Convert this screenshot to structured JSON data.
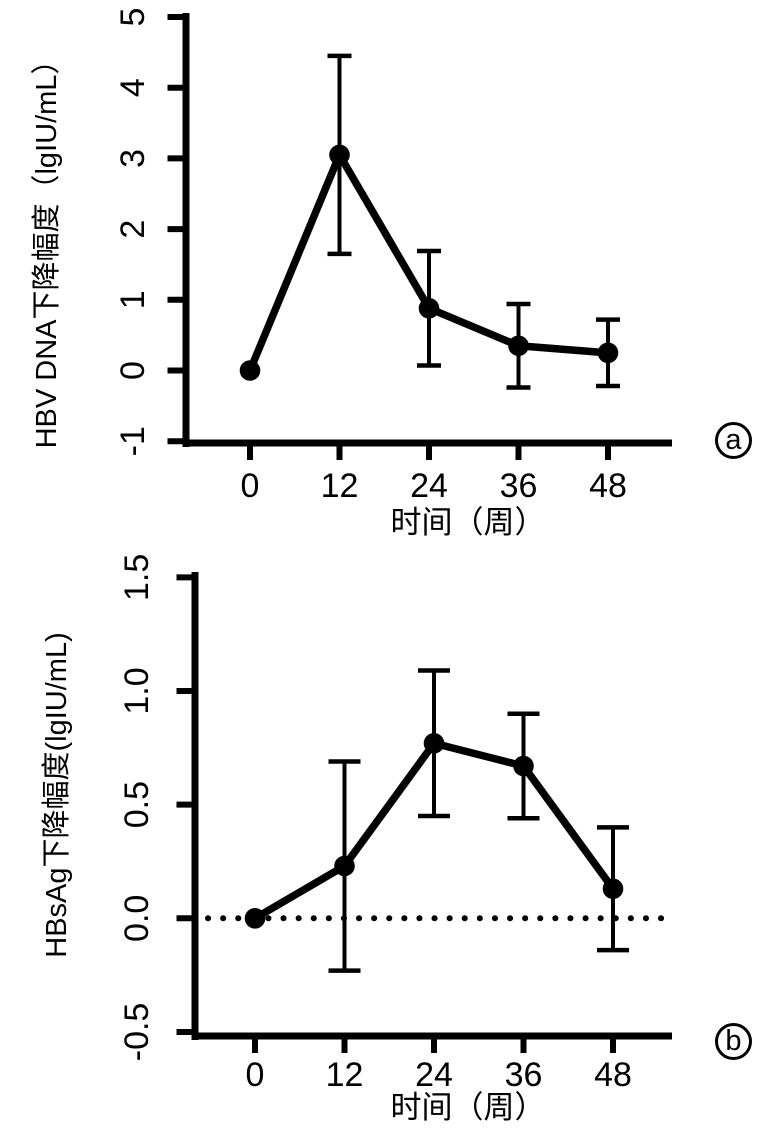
{
  "figure": {
    "background": "#ffffff",
    "ink_color": "#000000",
    "marker": "filled-circle",
    "error_bars": true
  },
  "chart_data": [
    {
      "panel_label": "a",
      "type": "line",
      "title": "",
      "xlabel": "时间（周）",
      "ylabel": "HBV DNA下降幅度（lgIU/mL）",
      "x": [
        0,
        12,
        24,
        36,
        48
      ],
      "xtick_labels": [
        "0",
        "12",
        "24",
        "36",
        "48"
      ],
      "ytick_values": [
        5,
        4,
        3,
        2,
        1,
        0,
        -1
      ],
      "ytick_labels": [
        "5",
        "4",
        "3",
        "2",
        "1",
        "0",
        "-1"
      ],
      "ylim": [
        -1,
        5
      ],
      "xlim_weeks": [
        0,
        48
      ],
      "grid": false,
      "legend": "none",
      "zero_line": false,
      "line_color": "#000000",
      "series": [
        {
          "name": "HBV DNA decline (lgIU/mL)",
          "values": [
            0.0,
            3.05,
            0.88,
            0.35,
            0.25
          ],
          "error": [
            null,
            1.4,
            0.81,
            0.59,
            0.47
          ]
        }
      ]
    },
    {
      "panel_label": "b",
      "type": "line",
      "title": "",
      "xlabel": "时间（周）",
      "ylabel": "HBsAg下降幅度(lgIU/mL)",
      "x": [
        0,
        12,
        24,
        36,
        48
      ],
      "xtick_labels": [
        "0",
        "12",
        "24",
        "36",
        "48"
      ],
      "ytick_values": [
        1.5,
        1.0,
        0.5,
        0.0,
        -0.5
      ],
      "ytick_labels": [
        "1.5",
        "1.0",
        "0.5",
        "0.0",
        "-0.5"
      ],
      "ylim": [
        -0.5,
        1.5
      ],
      "xlim_weeks": [
        0,
        48
      ],
      "grid": false,
      "legend": "none",
      "zero_line": true,
      "zero_line_style": "dotted",
      "line_color": "#000000",
      "series": [
        {
          "name": "HBsAg decline (lgIU/mL)",
          "values": [
            0.0,
            0.23,
            0.77,
            0.67,
            0.13
          ],
          "error": [
            null,
            0.46,
            0.32,
            0.23,
            0.27
          ]
        }
      ]
    }
  ]
}
